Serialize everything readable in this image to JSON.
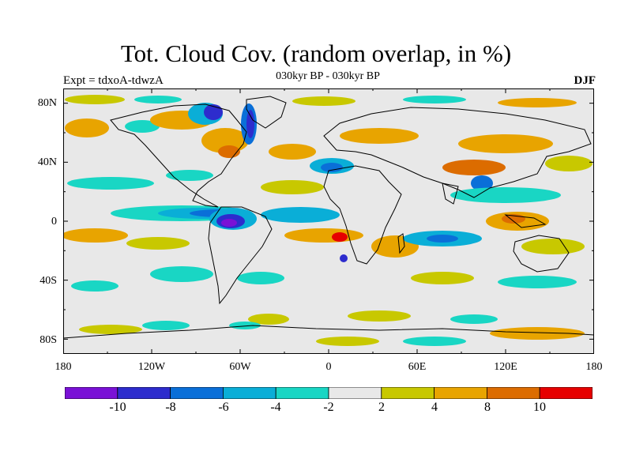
{
  "header": {
    "title": "Tot. Cloud Cov. (random overlap, in %)",
    "subtitle": "030kyr BP - 030kyr BP",
    "experiment": "Expt = tdxoA-tdwzA",
    "season": "DJF"
  },
  "axes": {
    "lat_labels": [
      "80N",
      "40N",
      "0",
      "40S",
      "80S"
    ],
    "lon_labels": [
      "180",
      "120W",
      "60W",
      "0",
      "60E",
      "120E",
      "180"
    ]
  },
  "colorbar": {
    "colors": [
      "#7a11d6",
      "#2d2ccd",
      "#0a6fd8",
      "#0aaed7",
      "#19d6c4",
      "#e8e8e8",
      "#c8c800",
      "#e8a400",
      "#dc6c00",
      "#e60000"
    ],
    "labels": [
      "-10",
      "-8",
      "-6",
      "-4",
      "-2",
      "2",
      "4",
      "8",
      "10"
    ]
  },
  "palette": {
    "land": "#000000",
    "neutral": "#e8e8e8"
  }
}
